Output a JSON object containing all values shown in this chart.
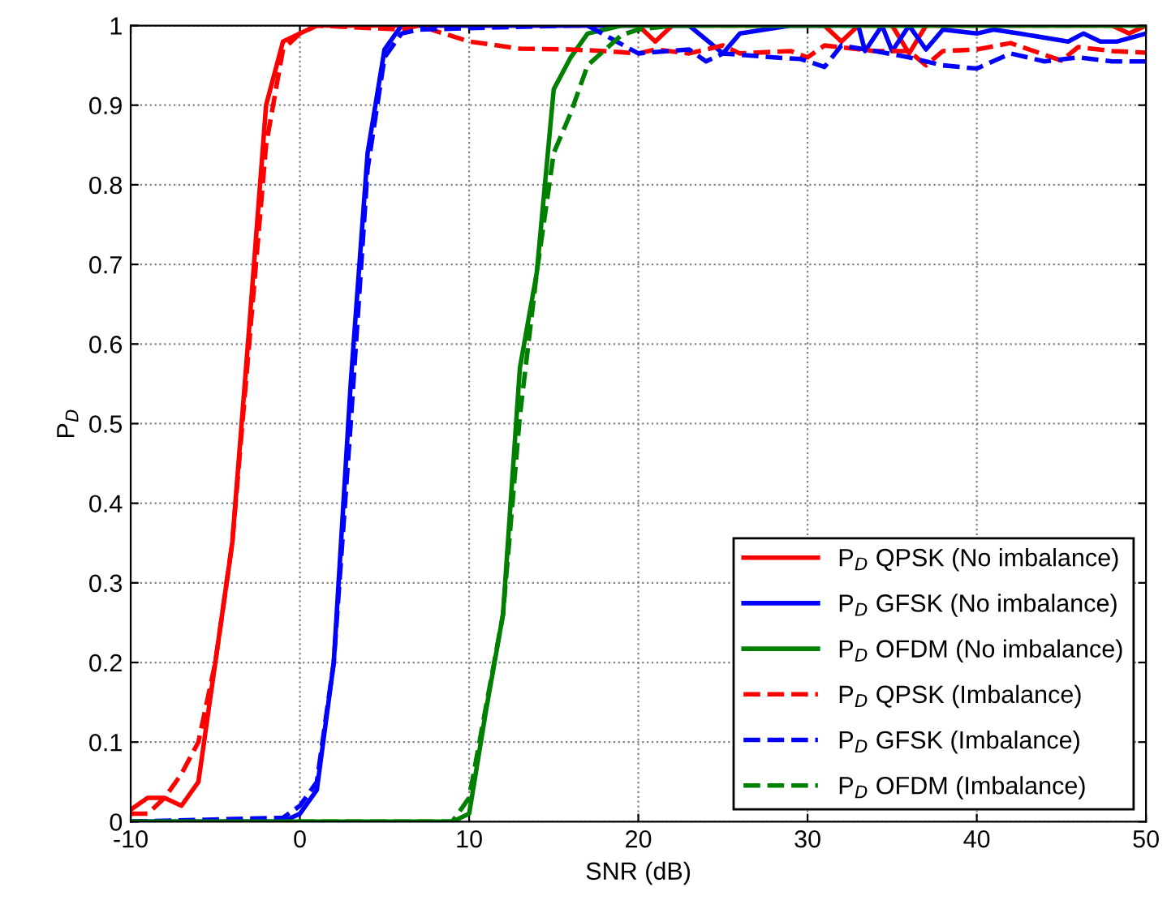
{
  "chart_data": {
    "type": "line",
    "xlabel": "SNR (dB)",
    "ylabel": "P$_{D}$",
    "xlim": [
      -10,
      50
    ],
    "ylim": [
      0,
      1
    ],
    "xticks": [
      -10,
      0,
      10,
      20,
      30,
      40,
      50
    ],
    "yticks": [
      0,
      0.1,
      0.2,
      0.3,
      0.4,
      0.5,
      0.6,
      0.7,
      0.8,
      0.9,
      1
    ],
    "grid": true,
    "legend": "bottom right",
    "marker": "none",
    "series": [
      {
        "name": "P$_{D}$ QPSK (No imbalance)",
        "color": "#ff0000",
        "line_style": "solid",
        "x": [
          -10,
          -9,
          -8,
          -7,
          -6,
          -5,
          -4,
          -3,
          -2,
          -1,
          0,
          1,
          20,
          21,
          22,
          31,
          32,
          33,
          35,
          36,
          37,
          48,
          49,
          50
        ],
        "values": [
          0.015,
          0.03,
          0.03,
          0.02,
          0.05,
          0.2,
          0.35,
          0.62,
          0.9,
          0.98,
          0.99,
          1,
          1,
          0.98,
          1,
          1,
          0.98,
          1,
          1,
          0.965,
          1,
          1,
          0.99,
          1
        ]
      },
      {
        "name": "P$_{D}$ GFSK (No imbalance)",
        "color": "#0000ff",
        "line_style": "solid",
        "x": [
          -10,
          -1,
          0,
          1,
          2,
          3,
          4,
          5,
          6,
          23,
          25,
          26,
          29,
          33,
          33.4,
          34.4,
          35,
          36,
          37,
          38,
          40,
          41,
          42.5,
          45.4,
          46.3,
          47.3,
          48.3,
          50
        ],
        "values": [
          0,
          0,
          0.01,
          0.04,
          0.2,
          0.55,
          0.84,
          0.97,
          1,
          1,
          0.965,
          0.99,
          1,
          1,
          0.968,
          1,
          0.968,
          1,
          0.97,
          0.995,
          0.99,
          0.995,
          0.99,
          0.98,
          0.99,
          0.98,
          0.98,
          0.99
        ]
      },
      {
        "name": "P$_{D}$ OFDM (No imbalance)",
        "color": "#008000",
        "line_style": "solid",
        "x": [
          -10,
          9,
          10,
          11,
          12,
          13,
          14,
          15,
          16,
          17,
          18,
          19,
          50
        ],
        "values": [
          0,
          0,
          0.01,
          0.14,
          0.26,
          0.57,
          0.69,
          0.92,
          0.96,
          0.99,
          0.995,
          1,
          1
        ]
      },
      {
        "name": "P$_{D}$ QPSK (Imbalance)",
        "color": "#ff0000",
        "line_style": "dashed",
        "x": [
          -10,
          -9,
          -8,
          -7,
          -6,
          -5,
          -4,
          -3,
          -2,
          -1,
          0,
          1,
          6,
          7,
          10,
          13,
          16,
          18,
          20,
          21,
          23,
          25,
          26,
          29,
          30,
          31,
          34,
          36,
          37,
          38,
          40,
          42,
          45,
          46,
          48,
          50
        ],
        "values": [
          0.01,
          0.01,
          0.03,
          0.06,
          0.1,
          0.2,
          0.35,
          0.6,
          0.85,
          0.97,
          0.99,
          1,
          0.995,
          1,
          0.98,
          0.971,
          0.97,
          0.968,
          0.965,
          0.97,
          0.965,
          0.975,
          0.965,
          0.968,
          0.96,
          0.975,
          0.968,
          0.968,
          0.95,
          0.968,
          0.97,
          0.978,
          0.956,
          0.973,
          0.968,
          0.966
        ]
      },
      {
        "name": "P$_{D}$ GFSK (Imbalance)",
        "color": "#0000ff",
        "line_style": "dashed",
        "x": [
          -10,
          -1,
          0,
          1,
          2,
          3,
          4,
          5,
          6,
          7,
          16,
          17,
          20,
          23,
          24,
          25,
          28,
          29.6,
          31,
          32,
          34,
          36,
          38,
          40,
          42,
          44,
          46,
          48,
          50
        ],
        "values": [
          0,
          0.005,
          0.02,
          0.05,
          0.2,
          0.5,
          0.82,
          0.96,
          0.99,
          0.995,
          1,
          1,
          0.965,
          0.97,
          0.955,
          0.965,
          0.96,
          0.958,
          0.948,
          0.975,
          0.968,
          0.96,
          0.95,
          0.946,
          0.965,
          0.955,
          0.96,
          0.955,
          0.955
        ]
      },
      {
        "name": "P$_{D}$ OFDM (Imbalance)",
        "color": "#008000",
        "line_style": "dashed",
        "x": [
          -10,
          9,
          10,
          12,
          13,
          14,
          15,
          16,
          17,
          19,
          20,
          22,
          50
        ],
        "values": [
          0,
          0,
          0.03,
          0.26,
          0.51,
          0.69,
          0.84,
          0.89,
          0.95,
          0.988,
          0.995,
          1,
          1
        ]
      }
    ]
  }
}
